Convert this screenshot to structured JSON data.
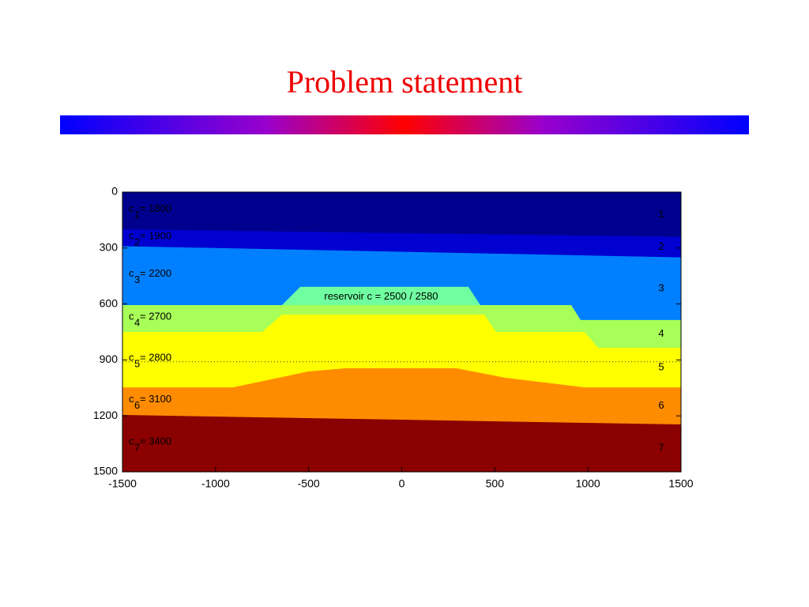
{
  "title": "Problem statement",
  "chart_data": {
    "type": "layers",
    "xlim": [
      -1500,
      1500
    ],
    "ylim": [
      1500,
      0
    ],
    "xticks": [
      -1500,
      -1000,
      -500,
      0,
      500,
      1000,
      1500
    ],
    "yticks": [
      0,
      300,
      600,
      900,
      1200,
      1500
    ],
    "dotted_line": 910,
    "layers": [
      {
        "name": "1",
        "symbol": "c",
        "label": "= 1800",
        "color": "#00008f",
        "x": [
          -1500,
          1500
        ],
        "y": [
          0,
          0
        ]
      },
      {
        "name": "2",
        "symbol": "c",
        "label": "= 1900",
        "color": "#0000d0",
        "x": [
          -1500,
          1500
        ],
        "y": [
          200,
          240
        ]
      },
      {
        "name": "3",
        "symbol": "c",
        "label": "= 2200",
        "color": "#0080ff",
        "x": [
          -1500,
          1500
        ],
        "y": [
          290,
          350
        ]
      },
      {
        "name": "4",
        "symbol": "c",
        "label": "= 2700",
        "color": "#a8ff58",
        "x": [
          -1500,
          910,
          961,
          1500
        ],
        "y": [
          606,
          606,
          686,
          686
        ]
      },
      {
        "name": "5",
        "symbol": "c",
        "label": "= 2800",
        "color": "#ffff00",
        "x": [
          -1500,
          -749,
          -643,
          443,
          507,
          982,
          1054,
          1500
        ],
        "y": [
          750,
          750,
          657,
          657,
          750,
          750,
          835,
          835
        ]
      },
      {
        "name": "6",
        "symbol": "c",
        "label": "= 3100",
        "color": "#ff8c00",
        "x": [
          -1500,
          -906,
          -503,
          -303,
          295,
          558,
          982,
          1500
        ],
        "y": [
          1047,
          1047,
          962,
          945,
          945,
          996,
          1047,
          1047
        ]
      },
      {
        "name": "7",
        "symbol": "c",
        "label": "= 3400",
        "color": "#8b0000",
        "x": [
          -1500,
          1500
        ],
        "y": [
          1195,
          1246
        ]
      }
    ],
    "reservoir": {
      "label": "reservoir c = 2500 / 2580",
      "color": "#70ffa0",
      "x": [
        -643,
        -545,
        358,
        422
      ],
      "y": [
        606,
        508,
        508,
        606
      ]
    }
  }
}
